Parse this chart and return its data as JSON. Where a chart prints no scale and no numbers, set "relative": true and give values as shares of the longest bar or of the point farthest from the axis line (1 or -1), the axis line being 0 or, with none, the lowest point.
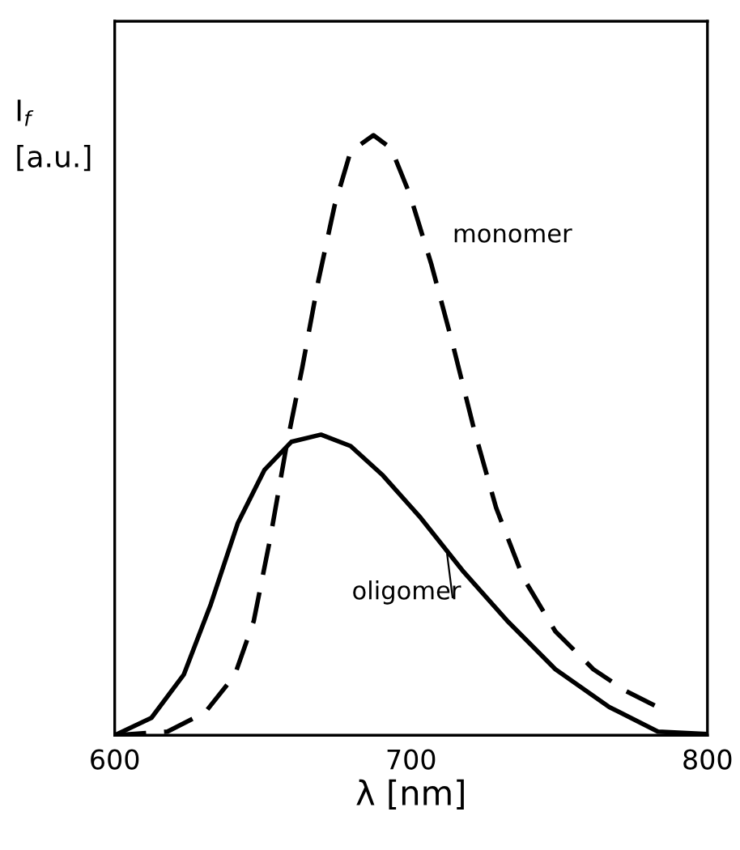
{
  "chart_data": {
    "type": "line",
    "relative": true,
    "xlabel": "λ [nm]",
    "ylabel": "I$_{f}$ [a.u.]",
    "xlim": [
      600,
      800
    ],
    "xticks": [
      600,
      700,
      800
    ],
    "grid": false,
    "legend": false,
    "marker": "none",
    "series": [
      {
        "name": "monomer",
        "color": "#000000",
        "line_style": "dashed",
        "x": [
          600,
          617.8,
          630.5,
          640.5,
          646.9,
          652.4,
          657.8,
          663.3,
          668.7,
          674.2,
          679.6,
          687.3,
          693.3,
          699.6,
          706.9,
          714.2,
          721.5,
          728.7,
          737.8,
          748.7,
          761.5,
          772.4,
          782.4
        ],
        "values": [
          0,
          0.006,
          0.038,
          0.1,
          0.19,
          0.326,
          0.478,
          0.613,
          0.757,
          0.883,
          0.973,
          1.0,
          0.978,
          0.901,
          0.784,
          0.649,
          0.505,
          0.379,
          0.263,
          0.173,
          0.11,
          0.074,
          0.049
        ]
      },
      {
        "name": "oligomer",
        "color": "#000000",
        "line_style": "solid",
        "x": [
          600,
          612.4,
          623.3,
          632.4,
          641.5,
          650.5,
          659.6,
          669.6,
          679.6,
          690.5,
          703.3,
          717.8,
          732.4,
          748.7,
          766.9,
          783.3,
          800
        ],
        "values": [
          0,
          0.029,
          0.101,
          0.218,
          0.353,
          0.442,
          0.489,
          0.501,
          0.482,
          0.433,
          0.362,
          0.272,
          0.191,
          0.11,
          0.047,
          0.006,
          0.002
        ]
      }
    ]
  }
}
